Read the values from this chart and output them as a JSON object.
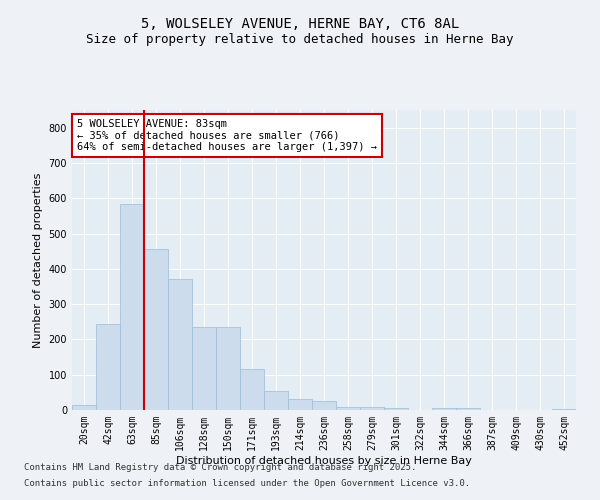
{
  "title_line1": "5, WOLSELEY AVENUE, HERNE BAY, CT6 8AL",
  "title_line2": "Size of property relative to detached houses in Herne Bay",
  "xlabel": "Distribution of detached houses by size in Herne Bay",
  "ylabel": "Number of detached properties",
  "categories": [
    "20sqm",
    "42sqm",
    "63sqm",
    "85sqm",
    "106sqm",
    "128sqm",
    "150sqm",
    "171sqm",
    "193sqm",
    "214sqm",
    "236sqm",
    "258sqm",
    "279sqm",
    "301sqm",
    "322sqm",
    "344sqm",
    "366sqm",
    "387sqm",
    "409sqm",
    "430sqm",
    "452sqm"
  ],
  "values": [
    15,
    245,
    585,
    455,
    370,
    235,
    235,
    115,
    55,
    30,
    25,
    8,
    8,
    5,
    0,
    5,
    5,
    0,
    0,
    0,
    3
  ],
  "bar_color": "#ccdcec",
  "bar_edge_color": "#9bbdd4",
  "vline_color": "#cc0000",
  "vline_position": 2.5,
  "annotation_text": "5 WOLSELEY AVENUE: 83sqm\n← 35% of detached houses are smaller (766)\n64% of semi-detached houses are larger (1,397) →",
  "annotation_box_facecolor": "#ffffff",
  "annotation_box_edgecolor": "#cc0000",
  "ylim": [
    0,
    850
  ],
  "yticks": [
    0,
    100,
    200,
    300,
    400,
    500,
    600,
    700,
    800
  ],
  "background_color": "#eef2f7",
  "plot_bg_color": "#e4ecf4",
  "grid_color": "#ffffff",
  "title_fontsize": 10,
  "subtitle_fontsize": 9,
  "axis_label_fontsize": 8,
  "tick_fontsize": 7,
  "annotation_fontsize": 7.5,
  "footnote_fontsize": 6.5,
  "footnote_line1": "Contains HM Land Registry data © Crown copyright and database right 2025.",
  "footnote_line2": "Contains public sector information licensed under the Open Government Licence v3.0."
}
